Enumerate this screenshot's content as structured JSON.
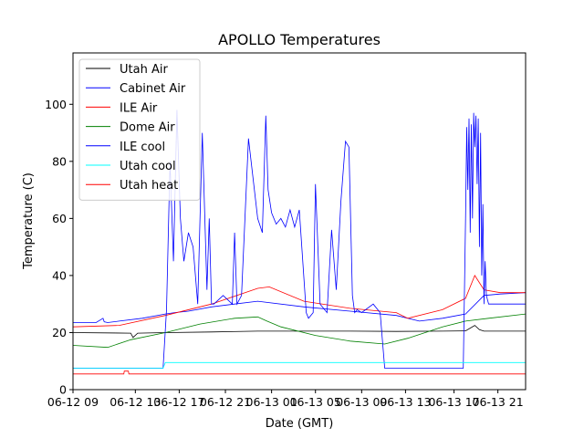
{
  "chart_data": {
    "type": "line",
    "title": "APOLLO Temperatures",
    "xlabel": "Date (GMT)",
    "ylabel": "Temperature (C)",
    "ylim": [
      0,
      118
    ],
    "xlim": [
      0,
      19.6
    ],
    "x_unit": "hours since 06-12 09:00 GMT",
    "yticks": [
      0,
      20,
      40,
      60,
      80,
      100
    ],
    "xticks": [
      {
        "x": 0,
        "label": "06-12 09"
      },
      {
        "x": 2.7,
        "label": "06-12 13"
      },
      {
        "x": 4.6,
        "label": "06-12 17"
      },
      {
        "x": 6.6,
        "label": "06-12 21"
      },
      {
        "x": 8.6,
        "label": "06-13 01"
      },
      {
        "x": 10.5,
        "label": "06-13 05"
      },
      {
        "x": 12.5,
        "label": "06-13 09"
      },
      {
        "x": 14.4,
        "label": "06-13 13"
      },
      {
        "x": 16.5,
        "label": "06-13 17"
      },
      {
        "x": 18.4,
        "label": "06-13 21"
      }
    ],
    "legend_position": "top-left",
    "grid": false,
    "series": [
      {
        "name": "Utah Air",
        "color": "#000000",
        "x": [
          0,
          2.5,
          2.6,
          2.8,
          4.0,
          6.0,
          8.0,
          10.0,
          12.0,
          14.0,
          16.0,
          17.0,
          17.4,
          17.6,
          17.8,
          18.5,
          19.6
        ],
        "y": [
          20,
          19.8,
          18.3,
          19.8,
          20,
          20.2,
          20.5,
          20.5,
          20.5,
          20.4,
          20.5,
          20.6,
          22.5,
          21,
          20.5,
          20.5,
          20.5
        ]
      },
      {
        "name": "Cabinet Air",
        "color": "#0000ff",
        "x": [
          0,
          1.0,
          1.3,
          1.35,
          1.5,
          2.0,
          3.0,
          4.0,
          4.4,
          5.0,
          6.0,
          8.0,
          10.0,
          12.0,
          14.0,
          15.0,
          16.0,
          17.0,
          17.8,
          18.5,
          19.6
        ],
        "y": [
          23.5,
          23.5,
          25,
          23.8,
          23.5,
          24,
          25,
          26.5,
          27,
          27.5,
          29,
          31,
          29,
          27.5,
          26,
          24,
          25,
          26.5,
          33,
          33.5,
          34
        ]
      },
      {
        "name": "ILE Air",
        "color": "#ff0000",
        "x": [
          0,
          2.0,
          4.0,
          6.0,
          8.0,
          8.5,
          10.0,
          12.0,
          14.0,
          14.5,
          16.0,
          17.0,
          17.4,
          17.8,
          18.5,
          19.6
        ],
        "y": [
          22,
          22.5,
          26,
          30,
          35.5,
          36,
          31,
          28.5,
          27,
          25,
          28,
          32,
          40,
          35,
          34,
          34
        ]
      },
      {
        "name": "Dome Air",
        "color": "#008000",
        "x": [
          0,
          1.5,
          2.5,
          4.0,
          5.5,
          7.0,
          8.0,
          8.4,
          9.0,
          10.5,
          12.0,
          13.5,
          14.5,
          16.0,
          17.0,
          18.0,
          19.6
        ],
        "y": [
          15.5,
          14.8,
          17.5,
          20,
          23,
          25,
          25.5,
          24,
          22,
          19,
          17,
          16,
          18,
          22,
          24,
          25,
          26.5
        ]
      },
      {
        "name": "ILE cool",
        "color": "#0000ff",
        "x": [
          0,
          3.9,
          4.05,
          4.2,
          4.35,
          4.5,
          4.65,
          4.8,
          5.0,
          5.2,
          5.4,
          5.6,
          5.8,
          5.9,
          6.0,
          6.1,
          6.5,
          6.9,
          7.0,
          7.1,
          7.3,
          7.6,
          8.0,
          8.2,
          8.35,
          8.45,
          8.6,
          8.8,
          9.0,
          9.2,
          9.4,
          9.6,
          9.8,
          10.1,
          10.2,
          10.4,
          10.5,
          10.7,
          11.0,
          11.2,
          11.4,
          11.6,
          11.8,
          11.95,
          12.1,
          12.2,
          12.3,
          12.5,
          13.0,
          13.3,
          13.5,
          16.9,
          17.0,
          17.05,
          17.1,
          17.15,
          17.2,
          17.25,
          17.3,
          17.35,
          17.4,
          17.45,
          17.5,
          17.55,
          17.6,
          17.65,
          17.7,
          17.75,
          17.8,
          17.85,
          17.9,
          18.0,
          19.6
        ],
        "y": [
          7.5,
          7.5,
          28,
          80,
          45,
          98,
          60,
          45,
          55,
          50,
          30,
          90,
          35,
          60,
          30,
          30,
          33,
          30,
          55,
          30,
          33,
          88,
          60,
          55,
          96,
          70,
          62,
          58,
          60,
          57,
          63,
          57,
          63,
          27,
          25,
          27,
          72,
          30,
          27,
          56,
          35,
          66,
          87,
          85,
          33,
          27,
          28,
          27,
          30,
          27,
          7.5,
          7.5,
          60,
          92,
          70,
          95,
          55,
          93,
          60,
          97,
          85,
          96,
          72,
          95,
          50,
          90,
          40,
          65,
          30,
          45,
          33,
          30,
          30
        ]
      },
      {
        "name": "Utah cool",
        "color": "#00ffff",
        "x": [
          0,
          3.9,
          4.0,
          5.0,
          6.0,
          8.0,
          10.0,
          12.0,
          14.0,
          16.0,
          18.0,
          19.6
        ],
        "y": [
          7.5,
          7.5,
          9.5,
          9.5,
          9.5,
          9.5,
          9.5,
          9.5,
          9.5,
          9.5,
          9.5,
          9.5
        ]
      },
      {
        "name": "Utah heat",
        "color": "#ff0000",
        "x": [
          0,
          2.2,
          2.22,
          2.4,
          2.42,
          19.6
        ],
        "y": [
          5.5,
          5.5,
          6.5,
          6.5,
          5.5,
          5.5
        ]
      }
    ]
  }
}
